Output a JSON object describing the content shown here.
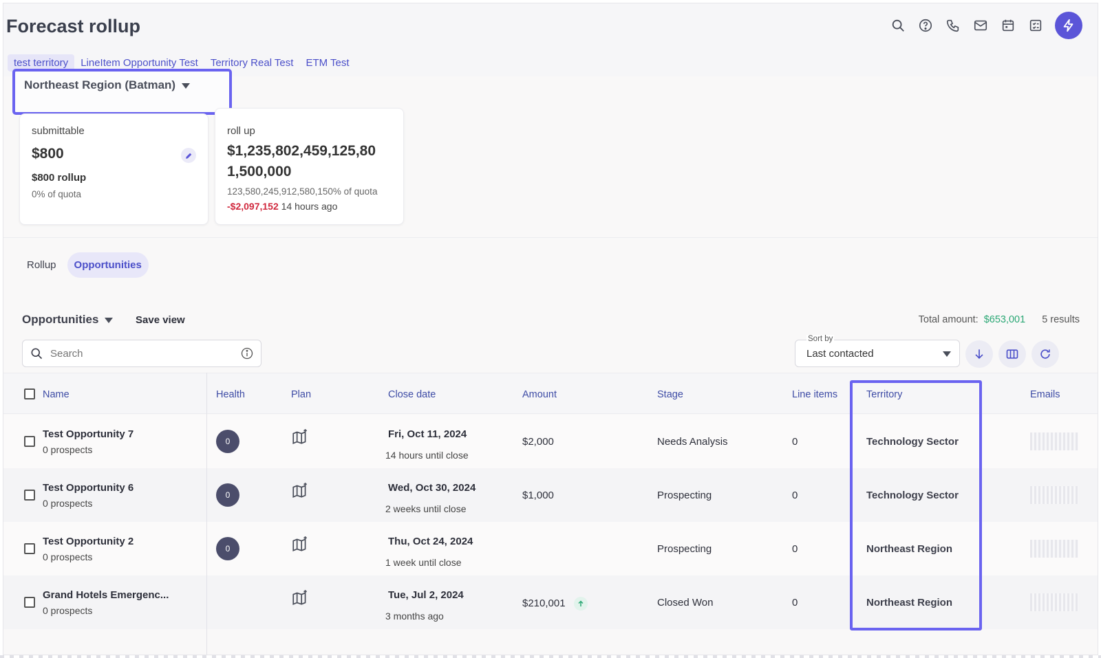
{
  "app": {
    "title": "Forecast rollup"
  },
  "top_icons": [
    "search-icon",
    "help-icon",
    "phone-icon",
    "mail-icon",
    "calendar-icon",
    "tasks-icon",
    "bolt-icon"
  ],
  "territory_tabs": [
    {
      "label": "test territory",
      "active": true
    },
    {
      "label": "LineItem Opportunity Test"
    },
    {
      "label": "Territory Real Test"
    },
    {
      "label": "ETM Test"
    }
  ],
  "region_selector": {
    "label": "Northeast Region (Batman)"
  },
  "cards": {
    "submittable": {
      "label": "submittable",
      "value": "$800",
      "rollup": "$800 rollup",
      "quota": "0% of quota"
    },
    "rollup": {
      "label": "roll up",
      "value_line1": "$1,235,802,459,125,80",
      "value_line2": "1,500,000",
      "quota": "123,580,245,912,580,150% of quota",
      "change": "-$2,097,152",
      "time": "14 hours ago"
    }
  },
  "view_tabs": [
    {
      "label": "Rollup"
    },
    {
      "label": "Opportunities",
      "active": true
    }
  ],
  "list": {
    "view_name": "Opportunities",
    "save_view": "Save view",
    "total_label": "Total amount:",
    "total_amount": "$653,001",
    "results": "5 results",
    "search_placeholder": "Search",
    "sort_label": "Sort by",
    "sort_value": "Last contacted"
  },
  "columns": [
    "Name",
    "Health",
    "Plan",
    "Close date",
    "Amount",
    "Stage",
    "Line items",
    "Territory",
    "Emails"
  ],
  "rows": [
    {
      "name": "Test Opportunity 7",
      "prospects": "0 prospects",
      "health": "0",
      "close_date": "Fri, Oct 11, 2024",
      "close_rel": "14 hours until close",
      "amount": "$2,000",
      "stage": "Needs Analysis",
      "line_items": "0",
      "territory": "Technology Sector"
    },
    {
      "name": "Test Opportunity 6",
      "prospects": "0 prospects",
      "health": "0",
      "close_date": "Wed, Oct 30, 2024",
      "close_rel": "2 weeks until close",
      "amount": "$1,000",
      "stage": "Prospecting",
      "line_items": "0",
      "territory": "Technology Sector"
    },
    {
      "name": "Test Opportunity 2",
      "prospects": "0 prospects",
      "health": "0",
      "close_date": "Thu, Oct 24, 2024",
      "close_rel": "1 week until close",
      "amount": "",
      "stage": "Prospecting",
      "line_items": "0",
      "territory": "Northeast Region"
    },
    {
      "name": "Grand Hotels Emergenc...",
      "prospects": "0 prospects",
      "health": "",
      "close_date": "Tue, Jul 2, 2024",
      "close_rel": "3 months ago",
      "amount": "$210,001",
      "stage": "Closed Won",
      "line_items": "0",
      "territory": "Northeast Region"
    }
  ],
  "colors": {
    "accent": "#5b55d8",
    "link": "#4b4fc9",
    "positive": "#2aa774",
    "negative": "#d0283d",
    "highlight": "#6a63f0"
  }
}
